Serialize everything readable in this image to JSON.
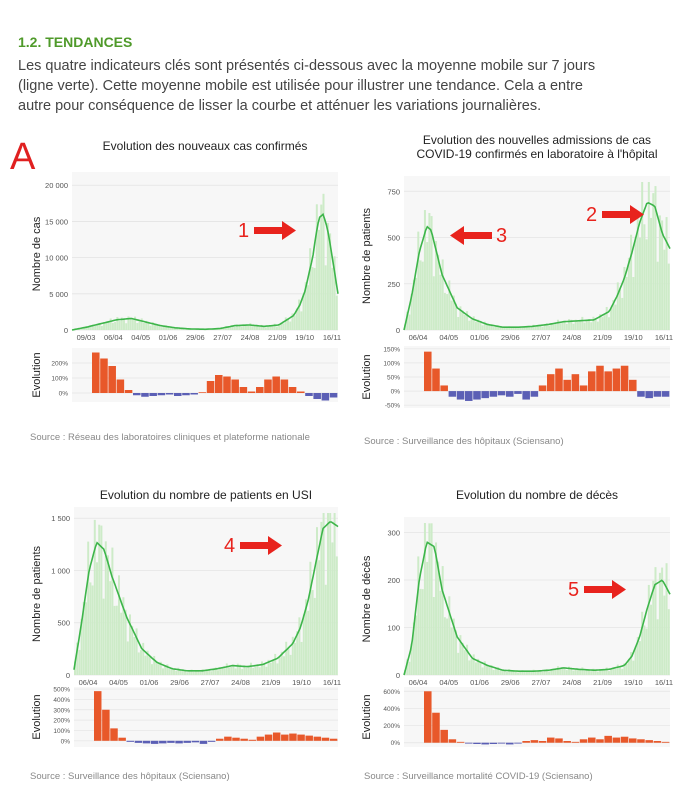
{
  "section": {
    "title": "1.2. TENDANCES",
    "lines": [
      "Les quatre indicateurs clés sont présentés ci-dessous avec la moyenne mobile sur 7 jours",
      "(ligne verte). Cette moyenne mobile est utilisée pour illustrer une tendance. Cela a entre",
      "autre pour conséquence de lisser la courbe et atténuer les variations journalières."
    ]
  },
  "figure_label": "A",
  "colors": {
    "line": "#3db54a",
    "bar": "#cdebc8",
    "pos": "#e8582a",
    "neg": "#5b5fb5",
    "arrow": "#e8231d",
    "title": "#4f9a2a"
  },
  "chart_data": [
    {
      "type": "bar",
      "title": "Evolution des nouveaux cas confirmés",
      "ylabel": "Nombre de cas",
      "ylim": [
        0,
        21000
      ],
      "yticks": [
        0,
        5000,
        10000,
        15000,
        20000
      ],
      "ytick_labels": [
        "0",
        "5 000",
        "10 000",
        "15 000",
        "20 000"
      ],
      "xtick_labels": [
        "09/03",
        "06/04",
        "04/05",
        "01/06",
        "29/06",
        "27/07",
        "24/08",
        "21/09",
        "19/10",
        "16/11"
      ],
      "x": [
        0,
        14,
        28,
        42,
        56,
        70,
        84,
        98,
        112,
        126,
        140,
        154,
        168,
        182,
        196,
        210,
        216,
        221,
        224,
        228,
        231,
        234,
        238,
        242,
        245,
        252
      ],
      "smooth": [
        0,
        400,
        900,
        1400,
        1600,
        1100,
        600,
        300,
        150,
        100,
        200,
        600,
        700,
        500,
        700,
        2000,
        3500,
        5500,
        7500,
        10000,
        13000,
        15500,
        16000,
        14000,
        11500,
        5000
      ],
      "evolution_label": "Evolution",
      "evolution_ticks": [
        "200%",
        "100%",
        "0%"
      ],
      "evolution_range": [
        -60,
        300
      ],
      "evolution": [
        270,
        230,
        180,
        90,
        20,
        -15,
        -25,
        -20,
        -15,
        -10,
        -20,
        -15,
        -10,
        5,
        80,
        120,
        110,
        90,
        40,
        10,
        40,
        90,
        110,
        90,
        40,
        10,
        -20,
        -40,
        -50,
        -30
      ],
      "source": "Source : Réseau des laboratoires cliniques et plateforme nationale",
      "arrow_number": "1",
      "arrow_dir": "right"
    },
    {
      "type": "bar",
      "title": "Evolution des nouvelles admissions de cas COVID-19 confirmés en laboratoire à l'hôpital",
      "ylabel": "Nombre de patients",
      "ylim": [
        0,
        800
      ],
      "yticks": [
        0,
        250,
        500,
        750
      ],
      "ytick_labels": [
        "0",
        "250",
        "500",
        "750"
      ],
      "xtick_labels": [
        "06/04",
        "04/05",
        "01/06",
        "29/06",
        "27/07",
        "24/08",
        "21/09",
        "19/10",
        "16/11"
      ],
      "x": [
        0,
        7,
        14,
        21,
        25,
        35,
        49,
        63,
        77,
        91,
        105,
        119,
        133,
        147,
        161,
        175,
        189,
        196,
        203,
        210,
        217,
        224,
        231,
        238,
        245
      ],
      "smooth": [
        0,
        180,
        420,
        560,
        540,
        300,
        120,
        60,
        30,
        15,
        15,
        20,
        30,
        45,
        50,
        55,
        100,
        180,
        280,
        420,
        580,
        690,
        670,
        520,
        440
      ],
      "evolution_label": "Evolution",
      "evolution_ticks": [
        "150%",
        "100%",
        "50%",
        "0%",
        "-50%"
      ],
      "evolution_range": [
        -60,
        160
      ],
      "evolution": [
        140,
        80,
        20,
        -20,
        -30,
        -35,
        -30,
        -25,
        -20,
        -15,
        -20,
        -10,
        -30,
        -20,
        20,
        60,
        80,
        40,
        60,
        20,
        70,
        90,
        70,
        80,
        90,
        40,
        -20,
        -25,
        -20,
        -20
      ],
      "source": "Source : Surveillance des hôpitaux (Sciensano)",
      "arrow_number": "2",
      "arrow_dir": "right",
      "arrow2_number": "3",
      "arrow2_dir": "left"
    },
    {
      "type": "bar",
      "title": "Evolution du nombre de patients en USI",
      "ylabel": "Nombre de patients",
      "ylim": [
        0,
        1550
      ],
      "yticks": [
        0,
        500,
        1000,
        1500
      ],
      "ytick_labels": [
        "0",
        "500",
        "1 000",
        "1 500"
      ],
      "xtick_labels": [
        "06/04",
        "04/05",
        "01/06",
        "29/06",
        "27/07",
        "24/08",
        "21/09",
        "19/10",
        "16/11"
      ],
      "x": [
        0,
        7,
        14,
        21,
        28,
        35,
        49,
        63,
        77,
        91,
        105,
        119,
        133,
        147,
        161,
        175,
        189,
        203,
        210,
        217,
        224,
        231,
        238,
        245
      ],
      "smooth": [
        50,
        500,
        1000,
        1270,
        1200,
        950,
        550,
        250,
        120,
        60,
        40,
        40,
        60,
        90,
        80,
        100,
        160,
        300,
        450,
        700,
        1050,
        1400,
        1470,
        1420
      ],
      "evolution_label": "Evolution",
      "evolution_ticks": [
        "500%",
        "400%",
        "300%",
        "200%",
        "100%",
        "0%"
      ],
      "evolution_range": [
        -60,
        520
      ],
      "evolution": [
        480,
        300,
        120,
        30,
        -10,
        -20,
        -25,
        -30,
        -25,
        -20,
        -25,
        -20,
        -15,
        -30,
        -10,
        20,
        40,
        30,
        20,
        10,
        40,
        60,
        80,
        60,
        70,
        60,
        50,
        40,
        30,
        20
      ],
      "source": "Source : Surveillance des hôpitaux (Sciensano)",
      "arrow_number": "4",
      "arrow_dir": "right"
    },
    {
      "type": "bar",
      "title": "Evolution du nombre de décès",
      "ylabel": "Nombre de décès",
      "ylim": [
        0,
        320
      ],
      "yticks": [
        0,
        100,
        200,
        300
      ],
      "ytick_labels": [
        "0",
        "100",
        "200",
        "300"
      ],
      "xtick_labels": [
        "06/04",
        "04/05",
        "01/06",
        "29/06",
        "27/07",
        "24/08",
        "21/09",
        "19/10",
        "16/11"
      ],
      "x": [
        0,
        7,
        14,
        21,
        28,
        35,
        49,
        63,
        77,
        91,
        105,
        119,
        133,
        147,
        161,
        175,
        189,
        203,
        210,
        217,
        224,
        231,
        238,
        245
      ],
      "smooth": [
        0,
        60,
        200,
        280,
        270,
        180,
        80,
        35,
        20,
        10,
        8,
        8,
        10,
        15,
        12,
        10,
        12,
        20,
        40,
        80,
        140,
        190,
        200,
        170
      ],
      "evolution_label": "Evolution",
      "evolution_ticks": [
        "600%",
        "400%",
        "200%",
        "0%"
      ],
      "evolution_range": [
        -50,
        650
      ],
      "evolution": [
        600,
        350,
        150,
        40,
        10,
        -10,
        -15,
        -20,
        -15,
        -10,
        -20,
        -10,
        20,
        30,
        20,
        60,
        50,
        20,
        10,
        40,
        60,
        40,
        80,
        60,
        70,
        50,
        40,
        30,
        20,
        10
      ],
      "source": "Source : Surveillance mortalité COVID-19 (Sciensano)",
      "arrow_number": "5",
      "arrow_dir": "right"
    }
  ]
}
